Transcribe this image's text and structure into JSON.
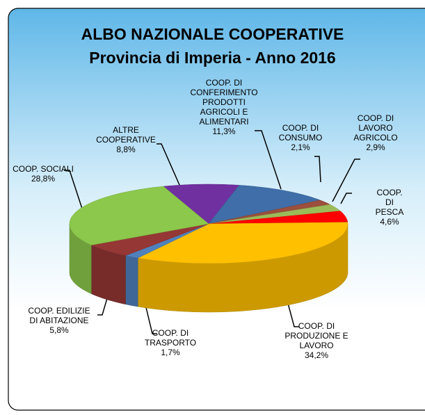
{
  "chart_data": {
    "type": "pie",
    "title": "ALBO NAZIONALE  COOPERATIVE",
    "subtitle": "Provincia di Imperia - Anno 2016",
    "categories": [
      "ALTRE\nCOOPERATIVE",
      "COOP. DI\nCONFERIMENTO\nPRODOTTI\nAGRICOLI E\nALIMENTARI",
      "COOP. DI\nCONSUMO",
      "COOP. DI\nLAVORO\nAGRICOLO",
      "COOP. DI PESCA",
      "COOP. DI\nPRODUZIONE E\nLAVORO",
      "COOP. DI\nTRASPORTO",
      "COOP. EDILIZIE\nDI ABITAZIONE",
      "COOP. SOCIALI"
    ],
    "values": [
      8.8,
      11.3,
      2.1,
      2.9,
      4.6,
      34.2,
      1.7,
      5.8,
      28.8
    ],
    "value_labels": [
      "8,8%",
      "11,3%",
      "2,1%",
      "2,9%",
      "4,6%",
      "34,2%",
      "1,7%",
      "5,8%",
      "28,8%"
    ],
    "colors": [
      "#7030a0",
      "#3f6ea8",
      "#9b4f3c",
      "#9bbb59",
      "#ff0000",
      "#ffc000",
      "#4f81bd",
      "#953735",
      "#8cc84b"
    ]
  }
}
